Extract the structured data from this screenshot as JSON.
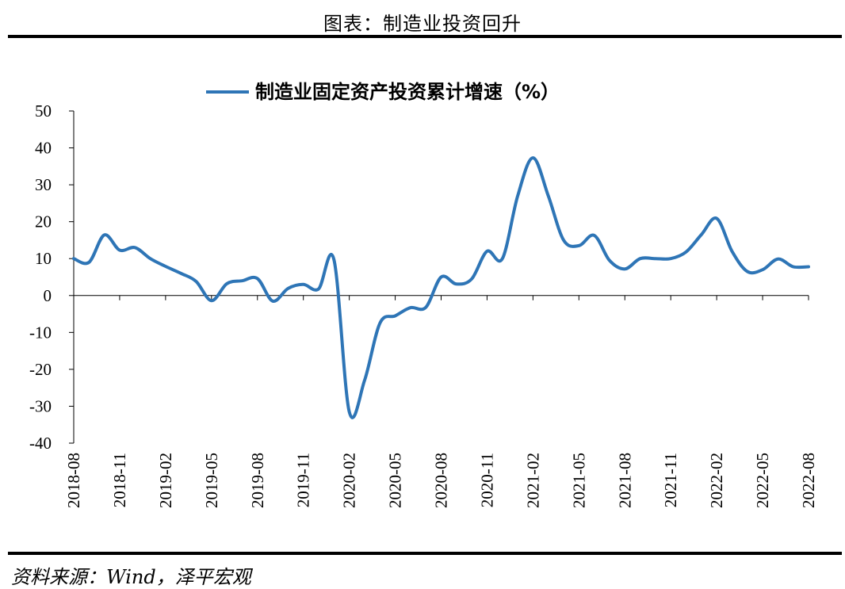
{
  "figure": {
    "title": "图表：制造业投资回升",
    "source": "资料来源：Wind，泽平宏观"
  },
  "chart_data": {
    "type": "line",
    "ylim": [
      -40,
      50
    ],
    "yticks": [
      -40,
      -30,
      -20,
      -10,
      0,
      10,
      20,
      30,
      40,
      50
    ],
    "xtick_labels": [
      "2018-08",
      "2018-11",
      "2019-02",
      "2019-05",
      "2019-08",
      "2019-11",
      "2020-02",
      "2020-05",
      "2020-08",
      "2020-11",
      "2021-02",
      "2021-05",
      "2021-08",
      "2021-11",
      "2022-02",
      "2022-05",
      "2022-08"
    ],
    "grid": false,
    "legend_position": "top-center",
    "series": [
      {
        "name": "制造业固定资产投资累计增速（%）",
        "color": "#2E75B6",
        "x": [
          "2018-08",
          "2018-09",
          "2018-10",
          "2018-11",
          "2018-12",
          "2019-01",
          "2019-02",
          "2019-03",
          "2019-04",
          "2019-05",
          "2019-06",
          "2019-07",
          "2019-08",
          "2019-09",
          "2019-10",
          "2019-11",
          "2019-12",
          "2020-01",
          "2020-02",
          "2020-03",
          "2020-04",
          "2020-05",
          "2020-06",
          "2020-07",
          "2020-08",
          "2020-09",
          "2020-10",
          "2020-11",
          "2020-12",
          "2021-01",
          "2021-02",
          "2021-03",
          "2021-04",
          "2021-05",
          "2021-06",
          "2021-07",
          "2021-08",
          "2021-09",
          "2021-10",
          "2021-11",
          "2021-12",
          "2022-01",
          "2022-02",
          "2022-03",
          "2022-04",
          "2022-05",
          "2022-06",
          "2022-07",
          "2022-08"
        ],
        "values": [
          10,
          9,
          16.4,
          12.3,
          13,
          10,
          7.9,
          6,
          3.8,
          -1.4,
          3.2,
          4,
          4.6,
          -1.5,
          1.9,
          3,
          1.8,
          9.7,
          -31.5,
          -23,
          -7.5,
          -5.5,
          -3.3,
          -3.2,
          5,
          3.1,
          4.5,
          12,
          10,
          27,
          37.3,
          27,
          15,
          13.5,
          16.3,
          9.5,
          7.2,
          10,
          10,
          10,
          11.8,
          16.5,
          20.9,
          12,
          6.5,
          7,
          9.9,
          7.8,
          7.8
        ]
      }
    ]
  }
}
